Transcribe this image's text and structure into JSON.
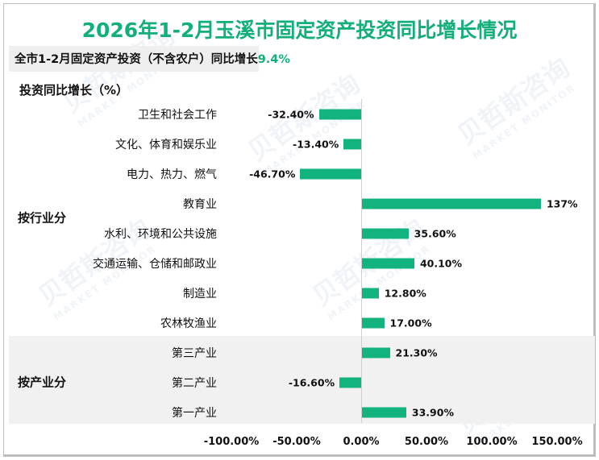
{
  "title": "2026年1-2月玉溪市固定资产投资同比增长情况",
  "subtitle": {
    "text": "全市1-2月固定资产投资（不含农户）同比增长",
    "highlight": "9.4%"
  },
  "y_axis_title": "投资同比增长（%）",
  "groups": [
    {
      "label": "按行业分"
    },
    {
      "label": "按产业分"
    }
  ],
  "colors": {
    "accent": "#12ae7b",
    "bar": "#12b37e",
    "band": "#f1f1f1"
  },
  "watermark": {
    "cn": "贝哲斯咨询",
    "en": "MARKET MONITOR"
  },
  "bars": [
    {
      "label": "卫生和社会工作",
      "value": -32.4,
      "display": "-32.40%"
    },
    {
      "label": "文化、体育和娱乐业",
      "value": -13.4,
      "display": "-13.40%"
    },
    {
      "label": "电力、热力、燃气",
      "value": -46.7,
      "display": "-46.70%"
    },
    {
      "label": "教育业",
      "value": 137,
      "display": "137%"
    },
    {
      "label": "水利、环境和公共设施",
      "value": 35.6,
      "display": "35.60%"
    },
    {
      "label": "交通运输、仓储和邮政业",
      "value": 40.1,
      "display": "40.10%"
    },
    {
      "label": "制造业",
      "value": 12.8,
      "display": "12.80%"
    },
    {
      "label": "农林牧渔业",
      "value": 17.0,
      "display": "17.00%"
    },
    {
      "label": "第三产业",
      "value": 21.3,
      "display": "21.30%"
    },
    {
      "label": "第二产业",
      "value": -16.6,
      "display": "-16.60%"
    },
    {
      "label": "第一产业",
      "value": 33.9,
      "display": "33.90%"
    }
  ],
  "x_ticks": [
    "-100.00%",
    "-50.00%",
    "0.00%",
    "50.00%",
    "100.00%",
    "150.00%"
  ],
  "chart_data": {
    "type": "bar",
    "orientation": "horizontal",
    "title": "2026年1-2月玉溪市固定资产投资同比增长情况",
    "subtitle": "全市1-2月固定资产投资（不含农户）同比增长9.4%",
    "xlabel": "",
    "ylabel": "投资同比增长（%）",
    "categories": [
      "卫生和社会工作",
      "文化、体育和娱乐业",
      "电力、热力、燃气",
      "教育业",
      "水利、环境和公共设施",
      "交通运输、仓储和邮政业",
      "制造业",
      "农林牧渔业",
      "第三产业",
      "第二产业",
      "第一产业"
    ],
    "values": [
      -32.4,
      -13.4,
      -46.7,
      137,
      35.6,
      40.1,
      12.8,
      17.0,
      21.3,
      -16.6,
      33.9
    ],
    "category_groups": [
      {
        "name": "按行业分",
        "categories": [
          "卫生和社会工作",
          "文化、体育和娱乐业",
          "电力、热力、燃气",
          "教育业",
          "水利、环境和公共设施",
          "交通运输、仓储和邮政业",
          "制造业",
          "农林牧渔业"
        ]
      },
      {
        "name": "按产业分",
        "categories": [
          "第三产业",
          "第二产业",
          "第一产业"
        ]
      }
    ],
    "xlim": [
      -100,
      150
    ],
    "x_tick_labels": [
      "-100.00%",
      "-50.00%",
      "0.00%",
      "50.00%",
      "100.00%",
      "150.00%"
    ],
    "grid": false,
    "legend": null,
    "data_labels": true
  }
}
